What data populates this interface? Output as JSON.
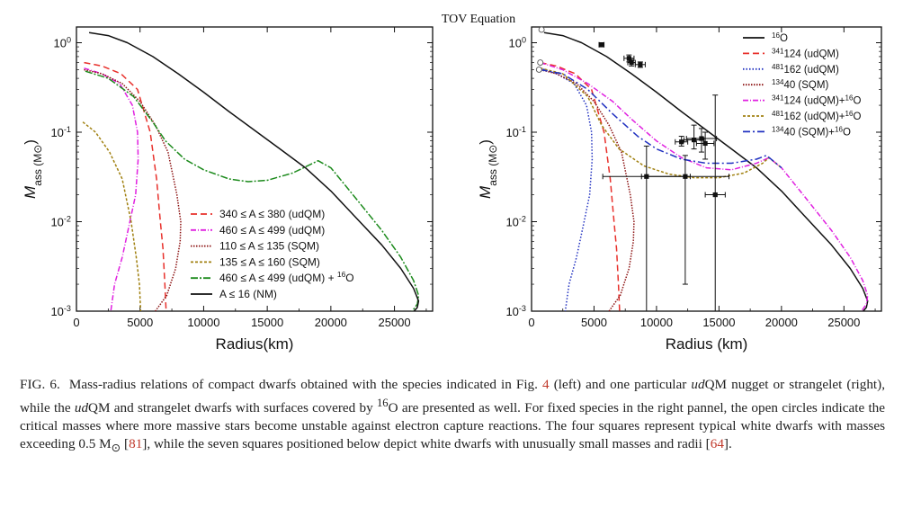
{
  "page_title": "TOV Equation",
  "caption": {
    "label": "FIG. 6.",
    "text_html": "Mass-radius relations of compact dwarfs obtained with the species indicated in Fig. <span class=\"ref\">4</span> (left) and one particular <span class=\"it\">ud</span>QM nugget or strangelet (right), while the <span class=\"it\">ud</span>QM and strangelet dwarfs with surfaces covered by <sup>16</sup>O are presented as well. For fixed species in the right pannel, the open circles indicate the critical masses where more massive stars become unstable against electron capture reactions. The four squares represent typical white dwarfs with masses exceeding 0.5 M<sub>&#8857;</sub> [<span class=\"ref\">81</span>], while the seven squares positioned below depict white dwarfs with unusually small masses and radii [<span class=\"ref\">64</span>]."
  },
  "chart_data": [
    {
      "type": "line",
      "panel": "left",
      "xlabel": "Radius(km)",
      "ylabel": "Mass (M⊙)",
      "xlim": [
        0,
        28000
      ],
      "ylim": [
        0.001,
        1.5
      ],
      "yscale": "log",
      "xticks": [
        0,
        5000,
        10000,
        15000,
        20000,
        25000
      ],
      "xtick_labels": [
        "0",
        "5000",
        "10000",
        "15000",
        "20000",
        "25000"
      ],
      "yticks": [
        0.001,
        0.01,
        0.1,
        1
      ],
      "ytick_labels": [
        "10⁻³",
        "10⁻²",
        "10⁻¹",
        "10⁰"
      ],
      "legend_position": "lower-center",
      "series": [
        {
          "name": "340 ≤ A ≤ 380 (udQM)",
          "color": "#e8302b",
          "dash": "7,4",
          "x": [
            600,
            2000,
            3500,
            4800,
            5800,
            6300,
            6600,
            6800,
            6950,
            7050
          ],
          "y": [
            0.6,
            0.55,
            0.45,
            0.3,
            0.1,
            0.03,
            0.01,
            0.005,
            0.002,
            0.001
          ]
        },
        {
          "name": "460 ≤ A ≤ 499 (udQM)",
          "color": "#e020e0",
          "dash": "6,2,1,2",
          "x": [
            600,
            2000,
            3400,
            4400,
            4800,
            4850,
            4650,
            4200,
            3600,
            3000,
            2700
          ],
          "y": [
            0.52,
            0.45,
            0.35,
            0.2,
            0.1,
            0.05,
            0.02,
            0.01,
            0.004,
            0.002,
            0.001
          ]
        },
        {
          "name": "110 ≤ A ≤ 135 (SQM)",
          "color": "#8b1010",
          "dash": "1.5,1.5",
          "x": [
            600,
            2000,
            3600,
            5000,
            6200,
            7200,
            7900,
            8200,
            8150,
            7800,
            7100,
            6200
          ],
          "y": [
            0.5,
            0.45,
            0.35,
            0.22,
            0.12,
            0.06,
            0.02,
            0.01,
            0.006,
            0.003,
            0.0015,
            0.001
          ]
        },
        {
          "name": "135 ≤ A ≤ 160 (SQM)",
          "color": "#a08010",
          "dash": "3,2",
          "x": [
            500,
            1500,
            2600,
            3600,
            4300,
            4700,
            4950,
            5050
          ],
          "y": [
            0.13,
            0.1,
            0.06,
            0.03,
            0.01,
            0.004,
            0.002,
            0.001
          ]
        },
        {
          "name": "460 ≤ A ≤ 499 (udQM) + ¹⁶O",
          "color": "#1c8a1c",
          "dash": "8,2,2,2",
          "x": [
            700,
            2500,
            4500,
            6000,
            7000,
            8500,
            10000,
            12000,
            13500,
            15000,
            17000,
            19000,
            20000,
            22000,
            24000,
            25500,
            26500,
            26900,
            26800,
            26400,
            26000
          ],
          "y": [
            0.48,
            0.4,
            0.25,
            0.13,
            0.08,
            0.05,
            0.038,
            0.03,
            0.028,
            0.029,
            0.035,
            0.048,
            0.04,
            0.018,
            0.008,
            0.004,
            0.0022,
            0.0015,
            0.0012,
            0.001,
            0.00085
          ]
        },
        {
          "name": "A ≤ 16 (NM)",
          "color": "#111111",
          "dash": "",
          "x": [
            1000,
            2500,
            4000,
            6000,
            8000,
            10000,
            12000,
            14000,
            16000,
            18000,
            20000,
            22000,
            24000,
            25500,
            26500,
            26900,
            26800,
            26400,
            26000
          ],
          "y": [
            1.3,
            1.2,
            1.0,
            0.7,
            0.45,
            0.28,
            0.17,
            0.105,
            0.065,
            0.04,
            0.022,
            0.011,
            0.0055,
            0.003,
            0.0018,
            0.0013,
            0.0011,
            0.00095,
            0.00085
          ]
        }
      ]
    },
    {
      "type": "line",
      "panel": "right",
      "xlabel": "Radius (km)",
      "ylabel": "Mass (M⊙)",
      "xlim": [
        0,
        28000
      ],
      "ylim": [
        0.001,
        1.5
      ],
      "yscale": "log",
      "xticks": [
        0,
        5000,
        10000,
        15000,
        20000,
        25000
      ],
      "xtick_labels": [
        "0",
        "5000",
        "10000",
        "15000",
        "20000",
        "25000"
      ],
      "yticks": [
        0.001,
        0.01,
        0.1,
        1
      ],
      "ytick_labels": [
        "10⁻³",
        "10⁻²",
        "10⁻¹",
        "10⁰"
      ],
      "legend_position": "top-right",
      "series": [
        {
          "name": "¹⁶O",
          "color": "#111111",
          "dash": "",
          "x": [
            1000,
            2500,
            4000,
            6000,
            8000,
            10000,
            12000,
            14000,
            16000,
            18000,
            20000,
            22000,
            24000,
            25500,
            26500,
            26900,
            26800,
            26400,
            26000
          ],
          "y": [
            1.3,
            1.2,
            1.0,
            0.7,
            0.45,
            0.28,
            0.17,
            0.105,
            0.065,
            0.04,
            0.022,
            0.011,
            0.0055,
            0.003,
            0.0018,
            0.0013,
            0.0011,
            0.00095,
            0.00085
          ]
        },
        {
          "name": "³⁴¹124 (udQM)",
          "color": "#e8302b",
          "dash": "7,4",
          "x": [
            700,
            2000,
            3500,
            4800,
            5800,
            6300,
            6600,
            6800,
            6950,
            7050
          ],
          "y": [
            0.6,
            0.55,
            0.45,
            0.3,
            0.1,
            0.03,
            0.01,
            0.005,
            0.002,
            0.001
          ]
        },
        {
          "name": "⁴⁸¹162 (udQM)",
          "color": "#2030c0",
          "dash": "1.5,2",
          "x": [
            700,
            2000,
            3400,
            4400,
            4800,
            4850,
            4650,
            4200,
            3600,
            3000,
            2700
          ],
          "y": [
            0.52,
            0.45,
            0.35,
            0.2,
            0.1,
            0.05,
            0.02,
            0.01,
            0.004,
            0.002,
            0.001
          ]
        },
        {
          "name": "¹³⁴40 (SQM)",
          "color": "#8b1010",
          "dash": "1.5,1.5",
          "x": [
            700,
            2000,
            3600,
            5000,
            6200,
            7200,
            7900,
            8200,
            8150,
            7800,
            7100,
            6200
          ],
          "y": [
            0.5,
            0.45,
            0.35,
            0.22,
            0.12,
            0.06,
            0.02,
            0.01,
            0.006,
            0.003,
            0.0015,
            0.001
          ]
        },
        {
          "name": "³⁴¹124 (udQM)+¹⁶O",
          "color": "#e020e0",
          "dash": "6,2,1,2",
          "x": [
            700,
            2500,
            4500,
            6500,
            8000,
            10000,
            12000,
            14000,
            16000,
            18000,
            19000,
            20000,
            22000,
            24000,
            25500,
            26500,
            26900,
            26800,
            26400,
            26000
          ],
          "y": [
            0.6,
            0.5,
            0.35,
            0.22,
            0.14,
            0.08,
            0.052,
            0.04,
            0.038,
            0.045,
            0.052,
            0.04,
            0.018,
            0.008,
            0.004,
            0.0022,
            0.0015,
            0.0012,
            0.001,
            0.00085
          ]
        },
        {
          "name": "⁴⁸¹162 (udQM)+¹⁶O",
          "color": "#a08010",
          "dash": "3,2",
          "x": [
            700,
            2500,
            4500,
            5600,
            7000,
            9000,
            11000,
            13000,
            15000,
            17000,
            18500,
            19000,
            20000
          ],
          "y": [
            0.52,
            0.45,
            0.25,
            0.12,
            0.065,
            0.042,
            0.034,
            0.031,
            0.031,
            0.035,
            0.045,
            0.052,
            0.04
          ]
        },
        {
          "name": "¹³⁴40 (SQM)+¹⁶O",
          "color": "#2030c0",
          "dash": "8,3,2,3",
          "x": [
            700,
            2500,
            4500,
            6500,
            8500,
            10000,
            12000,
            14000,
            16000,
            18000,
            18800,
            20000
          ],
          "y": [
            0.5,
            0.45,
            0.3,
            0.16,
            0.09,
            0.065,
            0.05,
            0.045,
            0.045,
            0.05,
            0.055,
            0.04
          ]
        }
      ],
      "critical_points": [
        {
          "x": 800,
          "y": 1.4
        },
        {
          "x": 700,
          "y": 0.6
        },
        {
          "x": 600,
          "y": 0.5
        }
      ],
      "data_points": [
        {
          "x": 5600,
          "y": 0.95,
          "xerr": 200,
          "yerr": 0.05
        },
        {
          "x": 7800,
          "y": 0.67,
          "xerr": 400,
          "yerr": 0.06
        },
        {
          "x": 8000,
          "y": 0.6,
          "xerr": 300,
          "yerr": 0.05
        },
        {
          "x": 8700,
          "y": 0.57,
          "xerr": 400,
          "yerr": 0.04
        },
        {
          "x": 9200,
          "y": 0.032,
          "xerr": 3500,
          "ylo": 0.001,
          "yhi": 0.07
        },
        {
          "x": 12300,
          "y": 0.032,
          "xerr": 3500,
          "ylo": 0.002,
          "yhi": 0.055
        },
        {
          "x": 14700,
          "y": 0.02,
          "xerr": 800,
          "ylo": 0.001,
          "yhi": 0.26
        },
        {
          "x": 12000,
          "y": 0.078,
          "xerr": 500,
          "ylo": 0.07,
          "yhi": 0.09
        },
        {
          "x": 13000,
          "y": 0.082,
          "xerr": 800,
          "ylo": 0.065,
          "yhi": 0.12
        },
        {
          "x": 13600,
          "y": 0.085,
          "xerr": 1200,
          "ylo": 0.06,
          "yhi": 0.11
        },
        {
          "x": 13900,
          "y": 0.075,
          "xerr": 700,
          "ylo": 0.05,
          "yhi": 0.1
        }
      ]
    }
  ]
}
